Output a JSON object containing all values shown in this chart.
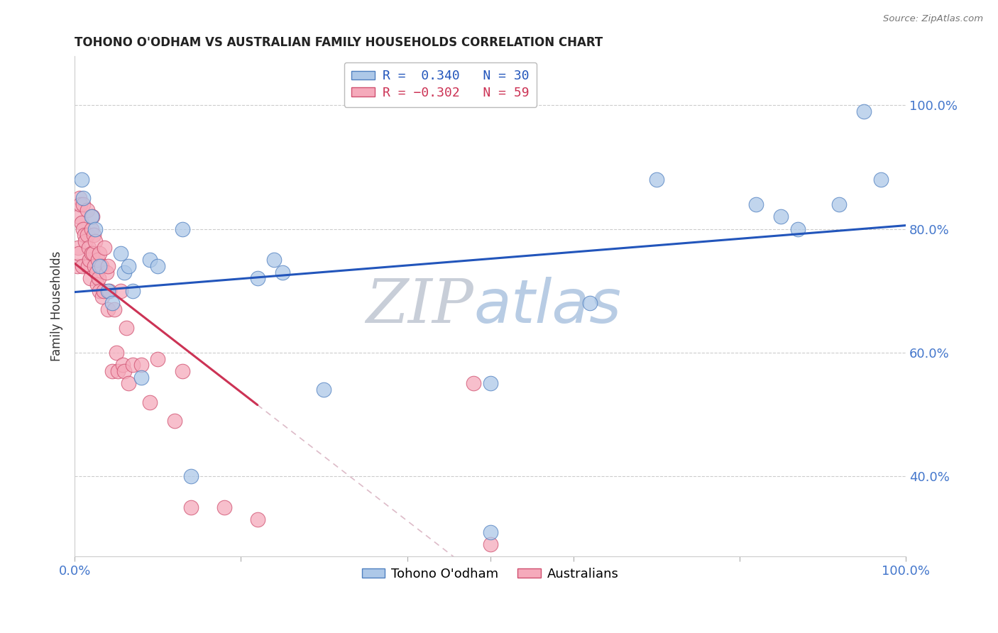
{
  "title": "TOHONO O'ODHAM VS AUSTRALIAN FAMILY HOUSEHOLDS CORRELATION CHART",
  "source": "Source: ZipAtlas.com",
  "ylabel": "Family Households",
  "xlim": [
    0.0,
    1.0
  ],
  "ylim": [
    0.27,
    1.08
  ],
  "yticks": [
    0.4,
    0.6,
    0.8,
    1.0
  ],
  "ytick_labels_right": [
    "40.0%",
    "60.0%",
    "80.0%",
    "100.0%"
  ],
  "legend_bottom": [
    "Tohono O'odham",
    "Australians"
  ],
  "blue_R": 0.34,
  "blue_N": 30,
  "pink_R": -0.302,
  "pink_N": 59,
  "blue_color": "#adc8e8",
  "pink_color": "#f5aabb",
  "blue_edge_color": "#5080c0",
  "pink_edge_color": "#d05070",
  "blue_line_color": "#2255bb",
  "pink_line_color": "#cc3355",
  "pink_ext_color": "#ddbbc8",
  "watermark_zip": "ZIP",
  "watermark_atlas": "atlas",
  "watermark_zip_color": "#c8ced8",
  "watermark_atlas_color": "#b8cce4",
  "grid_color": "#cccccc",
  "blue_x": [
    0.008,
    0.01,
    0.02,
    0.025,
    0.03,
    0.04,
    0.045,
    0.055,
    0.06,
    0.065,
    0.07,
    0.08,
    0.09,
    0.1,
    0.13,
    0.22,
    0.25,
    0.3,
    0.5,
    0.62,
    0.7,
    0.82,
    0.85,
    0.87,
    0.92,
    0.95,
    0.97,
    0.5,
    0.14,
    0.24
  ],
  "blue_y": [
    0.88,
    0.85,
    0.82,
    0.8,
    0.74,
    0.7,
    0.68,
    0.76,
    0.73,
    0.74,
    0.7,
    0.56,
    0.75,
    0.74,
    0.8,
    0.72,
    0.73,
    0.54,
    0.31,
    0.68,
    0.88,
    0.84,
    0.82,
    0.8,
    0.84,
    0.99,
    0.88,
    0.55,
    0.4,
    0.75
  ],
  "pink_x": [
    0.003,
    0.004,
    0.005,
    0.005,
    0.006,
    0.007,
    0.008,
    0.009,
    0.01,
    0.01,
    0.012,
    0.013,
    0.015,
    0.015,
    0.016,
    0.017,
    0.018,
    0.019,
    0.02,
    0.02,
    0.021,
    0.022,
    0.023,
    0.024,
    0.025,
    0.026,
    0.027,
    0.028,
    0.029,
    0.03,
    0.03,
    0.032,
    0.033,
    0.035,
    0.036,
    0.038,
    0.04,
    0.04,
    0.042,
    0.045,
    0.048,
    0.05,
    0.052,
    0.055,
    0.058,
    0.06,
    0.062,
    0.065,
    0.07,
    0.08,
    0.09,
    0.1,
    0.12,
    0.13,
    0.14,
    0.18,
    0.22,
    0.48,
    0.5
  ],
  "pink_y": [
    0.74,
    0.77,
    0.76,
    0.82,
    0.85,
    0.84,
    0.81,
    0.74,
    0.84,
    0.8,
    0.79,
    0.78,
    0.83,
    0.79,
    0.74,
    0.77,
    0.75,
    0.72,
    0.76,
    0.8,
    0.82,
    0.76,
    0.79,
    0.74,
    0.78,
    0.73,
    0.71,
    0.75,
    0.72,
    0.7,
    0.76,
    0.74,
    0.69,
    0.7,
    0.77,
    0.73,
    0.74,
    0.67,
    0.7,
    0.57,
    0.67,
    0.6,
    0.57,
    0.7,
    0.58,
    0.57,
    0.64,
    0.55,
    0.58,
    0.58,
    0.52,
    0.59,
    0.49,
    0.57,
    0.35,
    0.35,
    0.33,
    0.55,
    0.29
  ]
}
